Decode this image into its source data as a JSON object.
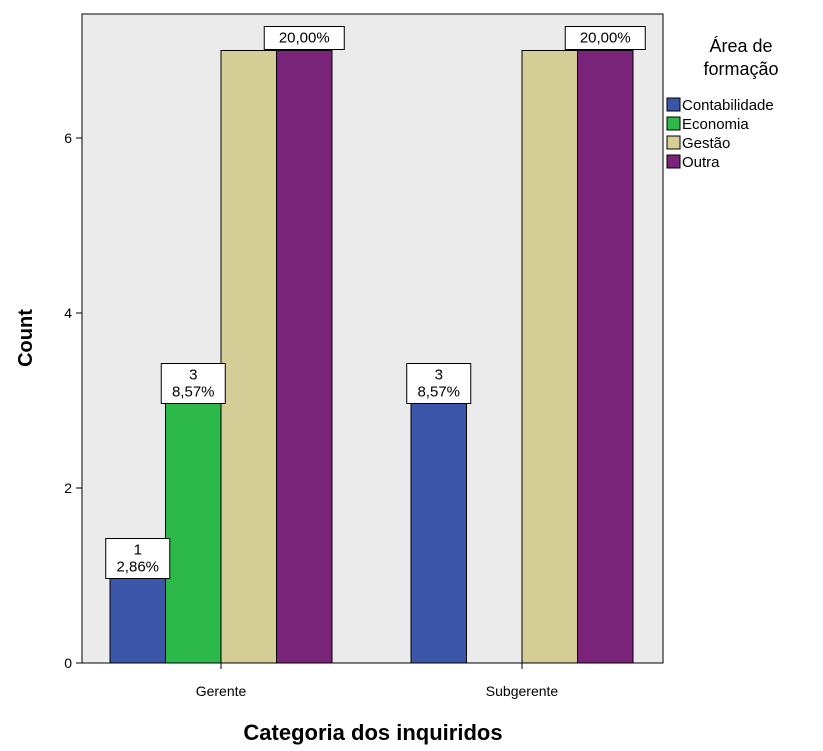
{
  "chart_data": {
    "type": "bar",
    "xlabel": "Categoria dos inquiridos",
    "ylabel": "Count",
    "ylim": [
      0,
      7.4
    ],
    "yticks": [
      "0",
      "2",
      "4",
      "6"
    ],
    "categories": [
      "Gerente",
      "Subgerente"
    ],
    "legend": {
      "title_lines": [
        "Área de",
        "formação"
      ],
      "placement": "right"
    },
    "series": [
      {
        "name": "Contabilidade",
        "color": "#3B56A8",
        "values": [
          1,
          3
        ],
        "labels": [
          [
            "1",
            "2,86%"
          ],
          [
            "3",
            "8,57%"
          ]
        ]
      },
      {
        "name": "Economia",
        "color": "#2DB94A",
        "values": [
          3,
          0
        ],
        "labels": [
          [
            "3",
            "8,57%"
          ],
          null
        ]
      },
      {
        "name": "Gestão",
        "color": "#D4CD96",
        "values": [
          7,
          7
        ],
        "labels": [
          null,
          null
        ]
      },
      {
        "name": "Outra",
        "color": "#7A2579",
        "values": [
          7,
          7
        ],
        "labels": [
          [
            "20,00%"
          ],
          [
            "20,00%"
          ]
        ]
      }
    ],
    "plot_background": "#EBEBEB",
    "grid": false
  }
}
